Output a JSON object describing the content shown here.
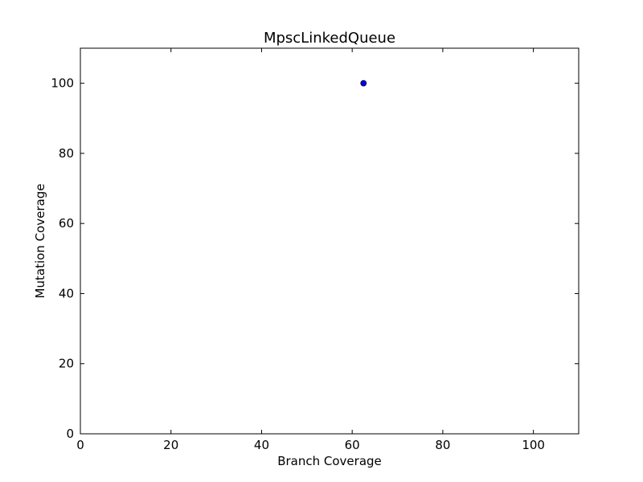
{
  "chart_data": {
    "type": "scatter",
    "title": "MpscLinkedQueue",
    "xlabel": "Branch Coverage",
    "ylabel": "Mutation Coverage",
    "xlim": [
      0,
      110
    ],
    "ylim": [
      0,
      110
    ],
    "xticks": [
      0,
      20,
      40,
      60,
      80,
      100
    ],
    "yticks": [
      0,
      20,
      40,
      60,
      80,
      100
    ],
    "grid": false,
    "point_color": "#0000ff",
    "points": [
      {
        "x": 62.5,
        "y": 100
      }
    ]
  }
}
